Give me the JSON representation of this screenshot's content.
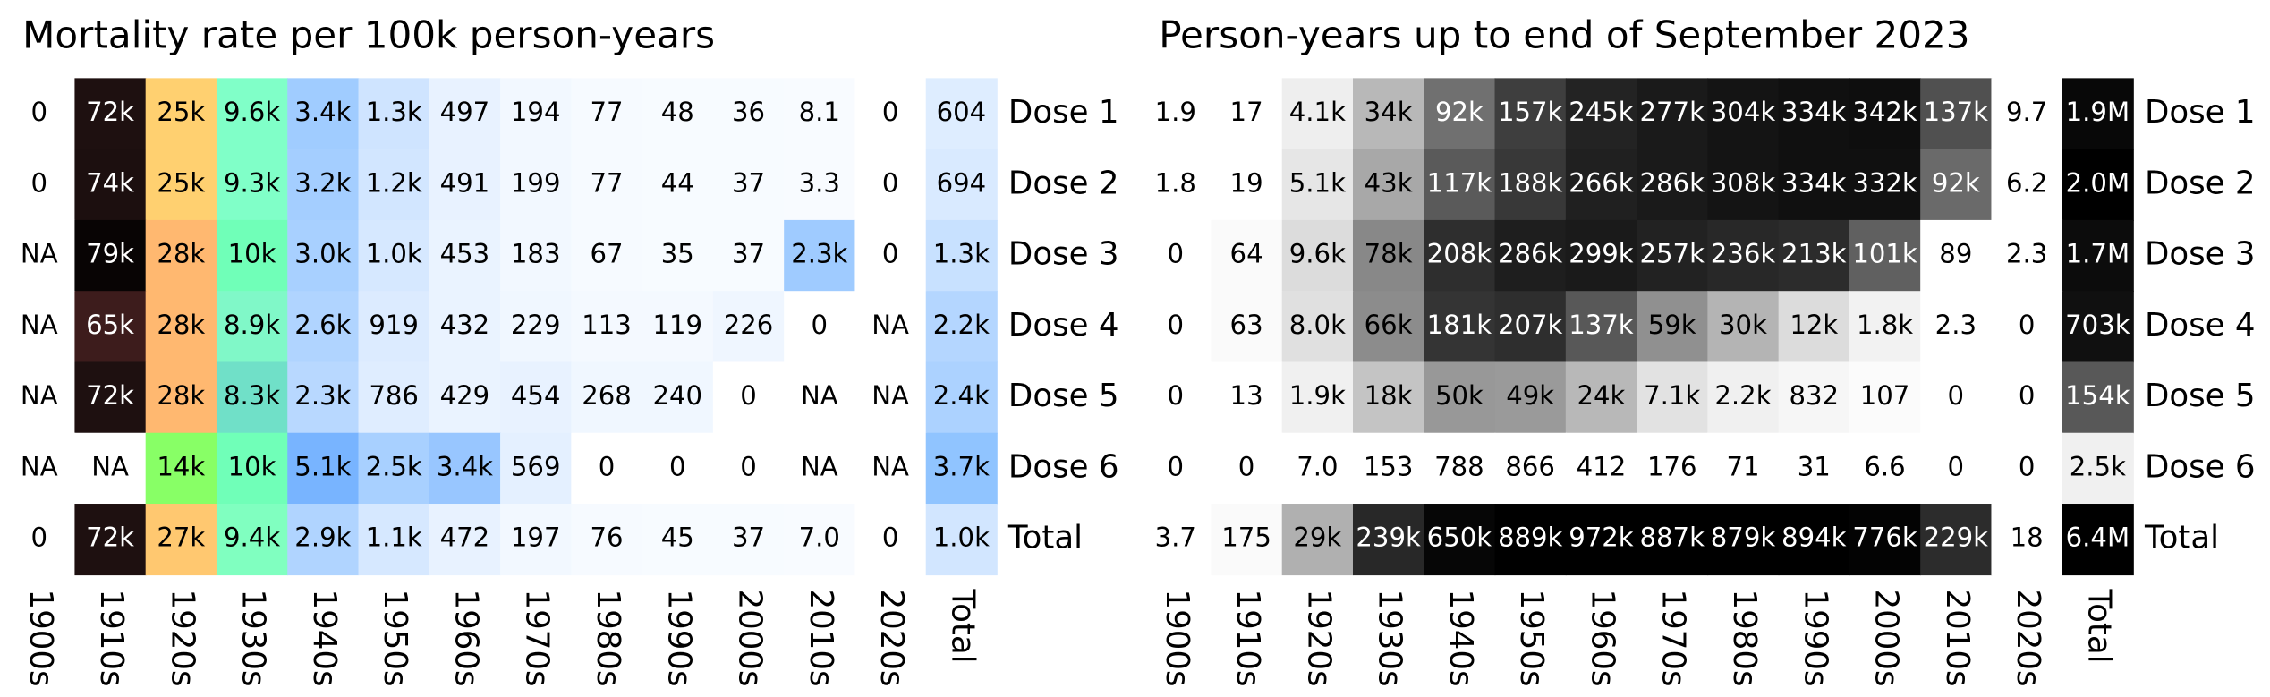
{
  "chart_data": [
    {
      "type": "heatmap",
      "title": "Mortality rate per 100k person-years",
      "x": [
        "1900s",
        "1910s",
        "1920s",
        "1930s",
        "1940s",
        "1950s",
        "1960s",
        "1970s",
        "1980s",
        "1990s",
        "2000s",
        "2010s",
        "2020s",
        "Total"
      ],
      "y": [
        "Dose 1",
        "Dose 2",
        "Dose 3",
        "Dose 4",
        "Dose 5",
        "Dose 6",
        "Total"
      ],
      "cells": [
        [
          "0",
          "72k",
          "25k",
          "9.6k",
          "3.4k",
          "1.3k",
          "497",
          "194",
          "77",
          "48",
          "36",
          "8.1",
          "0",
          "604"
        ],
        [
          "0",
          "74k",
          "25k",
          "9.3k",
          "3.2k",
          "1.2k",
          "491",
          "199",
          "77",
          "44",
          "37",
          "3.3",
          "0",
          "694"
        ],
        [
          "NA",
          "79k",
          "28k",
          "10k",
          "3.0k",
          "1.0k",
          "453",
          "183",
          "67",
          "35",
          "37",
          "2.3k",
          "0",
          "1.3k"
        ],
        [
          "NA",
          "65k",
          "28k",
          "8.9k",
          "2.6k",
          "919",
          "432",
          "229",
          "113",
          "119",
          "226",
          "0",
          "NA",
          "2.2k"
        ],
        [
          "NA",
          "72k",
          "28k",
          "8.3k",
          "2.3k",
          "786",
          "429",
          "454",
          "268",
          "240",
          "0",
          "NA",
          "NA",
          "2.4k"
        ],
        [
          "NA",
          "NA",
          "14k",
          "10k",
          "5.1k",
          "2.5k",
          "3.4k",
          "569",
          "0",
          "0",
          "0",
          "NA",
          "NA",
          "3.7k"
        ],
        [
          "0",
          "72k",
          "27k",
          "9.4k",
          "2.9k",
          "1.1k",
          "472",
          "197",
          "76",
          "45",
          "37",
          "7.0",
          "0",
          "1.0k"
        ]
      ],
      "colors": [
        [
          "#ffffff",
          "#1e1010",
          "#ffd070",
          "#80ffc8",
          "#a0ccff",
          "#cfe4ff",
          "#e8f2ff",
          "#f2f8ff",
          "#f6faff",
          "#f7fbff",
          "#f7fbff",
          "#f8fbff",
          "#ffffff",
          "#deedff"
        ],
        [
          "#ffffff",
          "#1c0f0f",
          "#ffd070",
          "#80ffc8",
          "#a4ceff",
          "#d2e6ff",
          "#e8f2ff",
          "#f2f8ff",
          "#f6faff",
          "#f7fbff",
          "#f7fbff",
          "#f8fbff",
          "#ffffff",
          "#d9eaff"
        ],
        [
          "#ffffff",
          "#080404",
          "#ffb870",
          "#70ffb8",
          "#a8d0ff",
          "#d6e8ff",
          "#eaf3ff",
          "#f2f8ff",
          "#f6faff",
          "#f7fbff",
          "#f7fbff",
          "#9fcbff",
          "#ffffff",
          "#c8e1ff"
        ],
        [
          "#ffffff",
          "#3d1c1c",
          "#ffb870",
          "#80f8c8",
          "#b0d4ff",
          "#dcebff",
          "#eaf3ff",
          "#f0f7ff",
          "#f4f9ff",
          "#f4f9ff",
          "#eff6ff",
          "#ffffff",
          "#ffffff",
          "#b4d6ff"
        ],
        [
          "#ffffff",
          "#1e1010",
          "#ffb870",
          "#70e0c8",
          "#b8d8ff",
          "#dfedff",
          "#eaf3ff",
          "#e8f2ff",
          "#f0f7ff",
          "#f0f7ff",
          "#ffffff",
          "#ffffff",
          "#ffffff",
          "#acd2ff"
        ],
        [
          "#ffffff",
          "#ffffff",
          "#88ff66",
          "#70ffb8",
          "#78b4ff",
          "#a8d0ff",
          "#98c6ff",
          "#e4f0ff",
          "#ffffff",
          "#ffffff",
          "#ffffff",
          "#ffffff",
          "#ffffff",
          "#90c4ff"
        ],
        [
          "#ffffff",
          "#1e1010",
          "#ffc870",
          "#80ffc0",
          "#b0d4ff",
          "#d6e8ff",
          "#e8f2ff",
          "#f2f8ff",
          "#f6faff",
          "#f7fbff",
          "#f7fbff",
          "#f8fbff",
          "#ffffff",
          "#d2e6ff"
        ]
      ]
    },
    {
      "type": "heatmap",
      "title": "Person-years up to end of September 2023",
      "x": [
        "1900s",
        "1910s",
        "1920s",
        "1930s",
        "1940s",
        "1950s",
        "1960s",
        "1970s",
        "1980s",
        "1990s",
        "2000s",
        "2010s",
        "2020s",
        "Total"
      ],
      "y": [
        "Dose 1",
        "Dose 2",
        "Dose 3",
        "Dose 4",
        "Dose 5",
        "Dose 6",
        "Total"
      ],
      "cells": [
        [
          "1.9",
          "17",
          "4.1k",
          "34k",
          "92k",
          "157k",
          "245k",
          "277k",
          "304k",
          "334k",
          "342k",
          "137k",
          "9.7",
          "1.9M"
        ],
        [
          "1.8",
          "19",
          "5.1k",
          "43k",
          "117k",
          "188k",
          "266k",
          "286k",
          "308k",
          "334k",
          "332k",
          "92k",
          "6.2",
          "2.0M"
        ],
        [
          "0",
          "64",
          "9.6k",
          "78k",
          "208k",
          "286k",
          "299k",
          "257k",
          "236k",
          "213k",
          "101k",
          "89",
          "2.3",
          "1.7M"
        ],
        [
          "0",
          "63",
          "8.0k",
          "66k",
          "181k",
          "207k",
          "137k",
          "59k",
          "30k",
          "12k",
          "1.8k",
          "2.3",
          "0",
          "703k"
        ],
        [
          "0",
          "13",
          "1.9k",
          "18k",
          "50k",
          "49k",
          "24k",
          "7.1k",
          "2.2k",
          "832",
          "107",
          "0",
          "0",
          "154k"
        ],
        [
          "0",
          "0",
          "7.0",
          "153",
          "788",
          "866",
          "412",
          "176",
          "71",
          "31",
          "6.6",
          "0",
          "0",
          "2.5k"
        ],
        [
          "3.7",
          "175",
          "29k",
          "239k",
          "650k",
          "889k",
          "972k",
          "887k",
          "879k",
          "894k",
          "776k",
          "229k",
          "18",
          "6.4M"
        ]
      ],
      "colors": [
        [
          "#ffffff",
          "#ffffff",
          "#eeeeee",
          "#b8b8b8",
          "#707070",
          "#3e3e3e",
          "#232323",
          "#1a1a1a",
          "#141414",
          "#101010",
          "#0e0e0e",
          "#505050",
          "#ffffff",
          "#080808"
        ],
        [
          "#ffffff",
          "#ffffff",
          "#e6e6e6",
          "#a8a8a8",
          "#5a5a5a",
          "#383838",
          "#202020",
          "#1a1a1a",
          "#141414",
          "#101010",
          "#101010",
          "#6a6a6a",
          "#ffffff",
          "#000000"
        ],
        [
          "#ffffff",
          "#fafafa",
          "#dcdcdc",
          "#888888",
          "#2e2e2e",
          "#1e1e1e",
          "#1a1a1a",
          "#222222",
          "#282828",
          "#2c2c2c",
          "#606060",
          "#ffffff",
          "#ffffff",
          "#0c0c0c"
        ],
        [
          "#ffffff",
          "#fafafa",
          "#e0e0e0",
          "#8c8c8c",
          "#343434",
          "#2e2e2e",
          "#585858",
          "#909090",
          "#b4b4b4",
          "#dcdcdc",
          "#f2f2f2",
          "#ffffff",
          "#ffffff",
          "#101010"
        ],
        [
          "#ffffff",
          "#ffffff",
          "#f0f0f0",
          "#c4c4c4",
          "#989898",
          "#9a9a9a",
          "#b8b8b8",
          "#e2e2e2",
          "#f0f0f0",
          "#f6f6f6",
          "#fbfbfb",
          "#ffffff",
          "#ffffff",
          "#585858"
        ],
        [
          "#ffffff",
          "#ffffff",
          "#ffffff",
          "#ffffff",
          "#ffffff",
          "#ffffff",
          "#ffffff",
          "#ffffff",
          "#ffffff",
          "#ffffff",
          "#ffffff",
          "#ffffff",
          "#ffffff",
          "#f0f0f0"
        ],
        [
          "#ffffff",
          "#fafafa",
          "#b0b0b0",
          "#282828",
          "#060606",
          "#000000",
          "#000000",
          "#000000",
          "#000000",
          "#000000",
          "#030303",
          "#2c2c2c",
          "#ffffff",
          "#000000"
        ]
      ]
    }
  ]
}
